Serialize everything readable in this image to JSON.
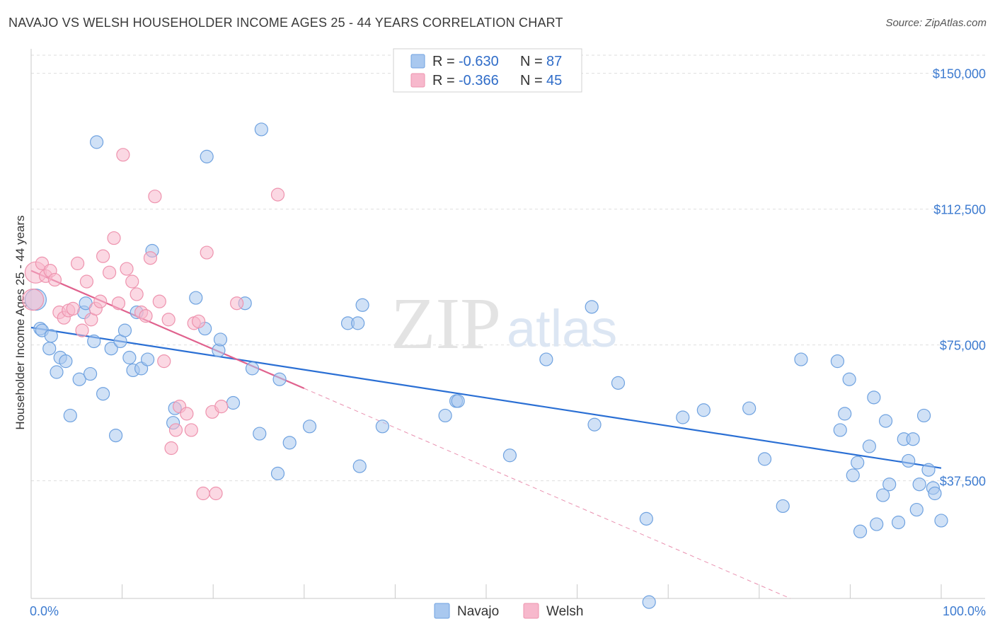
{
  "title": "NAVAJO VS WELSH HOUSEHOLDER INCOME AGES 25 - 44 YEARS CORRELATION CHART",
  "source": "Source: ZipAtlas.com",
  "watermark": {
    "part1": "ZIP",
    "part2": "atlas"
  },
  "legend": {
    "r_label": "R =",
    "n_label": "N =",
    "rows": [
      {
        "r": "-0.630",
        "n": "87",
        "color": "#a9c8ef"
      },
      {
        "r": "-0.366",
        "n": "45",
        "color": "#f7b8cc"
      }
    ]
  },
  "chart_data": {
    "type": "scatter",
    "title": "NAVAJO VS WELSH HOUSEHOLDER INCOME AGES 25 - 44 YEARS CORRELATION CHART",
    "xlabel": "",
    "ylabel": "Householder Income Ages 25 - 44 years",
    "xlim": [
      0,
      100
    ],
    "ylim": [
      5000,
      155000
    ],
    "x_tick_labels": [
      "0.0%",
      "100.0%"
    ],
    "y_ticks": [
      37500,
      75000,
      112500,
      150000
    ],
    "y_tick_labels": [
      "$37,500",
      "$75,000",
      "$112,500",
      "$150,000"
    ],
    "grid": "horizontal dashed",
    "legend_position": "top-center",
    "series": [
      {
        "name": "Navajo",
        "color": "#6fa2e0",
        "fill": "#a9c8ef",
        "trend_color": "#2a6fd4",
        "trend": {
          "x": [
            0,
            100
          ],
          "y": [
            79800,
            41000
          ]
        },
        "points": [
          [
            0.5,
            87500
          ],
          [
            1,
            79500
          ],
          [
            1.2,
            79000
          ],
          [
            2,
            74000
          ],
          [
            2.2,
            77500
          ],
          [
            2.8,
            67500
          ],
          [
            3.2,
            71500
          ],
          [
            3.8,
            70500
          ],
          [
            4.3,
            55500
          ],
          [
            5.3,
            65500
          ],
          [
            5.8,
            84000
          ],
          [
            6,
            86500
          ],
          [
            6.5,
            67000
          ],
          [
            6.9,
            76000
          ],
          [
            7.2,
            131000
          ],
          [
            7.9,
            61500
          ],
          [
            8.8,
            74000
          ],
          [
            9.3,
            50000
          ],
          [
            9.8,
            76000
          ],
          [
            10.3,
            79000
          ],
          [
            10.8,
            71500
          ],
          [
            11.2,
            68000
          ],
          [
            11.6,
            84000
          ],
          [
            12.1,
            68500
          ],
          [
            12.8,
            71000
          ],
          [
            13.3,
            101000
          ],
          [
            15.8,
            57500
          ],
          [
            15.6,
            53500
          ],
          [
            18.1,
            88000
          ],
          [
            19.1,
            79500
          ],
          [
            19.3,
            127000
          ],
          [
            20.6,
            73500
          ],
          [
            20.8,
            76500
          ],
          [
            22.2,
            59000
          ],
          [
            23.5,
            86500
          ],
          [
            24.3,
            68500
          ],
          [
            25.1,
            50500
          ],
          [
            25.3,
            134500
          ],
          [
            27.1,
            39500
          ],
          [
            27.3,
            65500
          ],
          [
            28.4,
            48000
          ],
          [
            30.6,
            52500
          ],
          [
            34.8,
            81000
          ],
          [
            35.9,
            81000
          ],
          [
            36.1,
            41500
          ],
          [
            36.4,
            86000
          ],
          [
            38.6,
            52500
          ],
          [
            45.5,
            55500
          ],
          [
            46.7,
            59500
          ],
          [
            46.9,
            59500
          ],
          [
            52.6,
            44500
          ],
          [
            56.6,
            71000
          ],
          [
            61.6,
            85500
          ],
          [
            61.9,
            53000
          ],
          [
            64.5,
            64500
          ],
          [
            67.6,
            27000
          ],
          [
            67.9,
            4000
          ],
          [
            71.6,
            55000
          ],
          [
            73.9,
            57000
          ],
          [
            78.9,
            57500
          ],
          [
            80.6,
            43500
          ],
          [
            82.6,
            30500
          ],
          [
            84.6,
            71000
          ],
          [
            88.6,
            70500
          ],
          [
            88.9,
            51500
          ],
          [
            89.4,
            56000
          ],
          [
            89.9,
            65500
          ],
          [
            90.3,
            39000
          ],
          [
            90.8,
            42500
          ],
          [
            91.1,
            23500
          ],
          [
            92.1,
            47000
          ],
          [
            92.6,
            60500
          ],
          [
            92.9,
            25500
          ],
          [
            93.6,
            33500
          ],
          [
            93.9,
            54000
          ],
          [
            94.3,
            36500
          ],
          [
            95.3,
            26000
          ],
          [
            95.9,
            49000
          ],
          [
            96.4,
            43000
          ],
          [
            96.9,
            49000
          ],
          [
            97.3,
            29500
          ],
          [
            97.6,
            36500
          ],
          [
            98.1,
            55500
          ],
          [
            98.6,
            40500
          ],
          [
            99.1,
            35500
          ],
          [
            99.3,
            34000
          ],
          [
            100,
            26500
          ]
        ]
      },
      {
        "name": "Welsh",
        "color": "#ee93ae",
        "fill": "#f7b8cc",
        "trend_color": "#e0628e",
        "trend": {
          "x": [
            0,
            30
          ],
          "y": [
            95500,
            63000
          ]
        },
        "trend_extension": {
          "x": [
            30,
            100
          ],
          "y": [
            63000,
            -13000
          ]
        },
        "points": [
          [
            0.2,
            87500
          ],
          [
            0.5,
            95000
          ],
          [
            1.2,
            97500
          ],
          [
            1.6,
            94000
          ],
          [
            2.1,
            95500
          ],
          [
            2.6,
            93000
          ],
          [
            3.1,
            84000
          ],
          [
            3.6,
            82500
          ],
          [
            4.1,
            84500
          ],
          [
            4.6,
            85000
          ],
          [
            5.1,
            97500
          ],
          [
            5.6,
            79000
          ],
          [
            6.1,
            92500
          ],
          [
            6.6,
            82000
          ],
          [
            7.1,
            85000
          ],
          [
            7.6,
            87000
          ],
          [
            7.9,
            99500
          ],
          [
            8.6,
            95000
          ],
          [
            9.1,
            104500
          ],
          [
            9.6,
            86500
          ],
          [
            10.1,
            127500
          ],
          [
            10.5,
            96000
          ],
          [
            11.1,
            92500
          ],
          [
            11.6,
            89000
          ],
          [
            12.1,
            84000
          ],
          [
            12.6,
            83000
          ],
          [
            13.1,
            99000
          ],
          [
            13.6,
            116000
          ],
          [
            14.1,
            87000
          ],
          [
            14.6,
            70500
          ],
          [
            15.1,
            82000
          ],
          [
            15.4,
            46500
          ],
          [
            15.9,
            51500
          ],
          [
            16.3,
            58000
          ],
          [
            17.1,
            56000
          ],
          [
            17.6,
            51500
          ],
          [
            17.9,
            81000
          ],
          [
            18.4,
            81500
          ],
          [
            18.9,
            34000
          ],
          [
            19.3,
            100500
          ],
          [
            19.9,
            56500
          ],
          [
            20.3,
            34000
          ],
          [
            20.9,
            58000
          ],
          [
            22.6,
            86500
          ],
          [
            27.1,
            116500
          ]
        ]
      }
    ]
  },
  "bottom_legend": {
    "items": [
      {
        "label": "Navajo"
      },
      {
        "label": "Welsh"
      }
    ]
  }
}
